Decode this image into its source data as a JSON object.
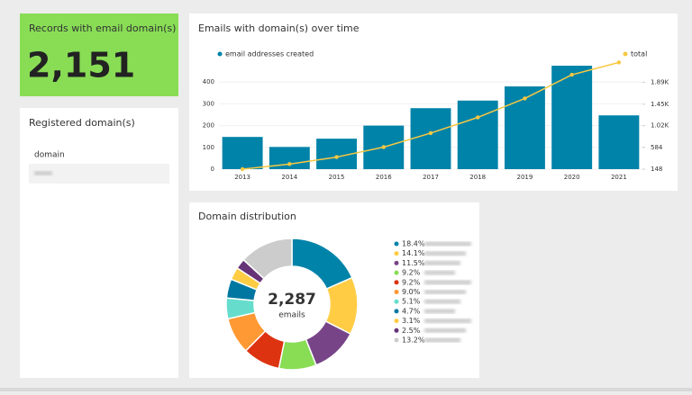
{
  "kpi": {
    "title": "Records with email domain(s)",
    "value": "2,151"
  },
  "registered_domains": {
    "title": "Registered domain(s)",
    "column": "domain"
  },
  "chart_data": [
    {
      "type": "bar",
      "title": "Emails with domain(s) over time",
      "categories": [
        "2013",
        "2014",
        "2015",
        "2016",
        "2017",
        "2018",
        "2019",
        "2020",
        "2021"
      ],
      "series": [
        {
          "name": "email addresses created",
          "color": "#0083a9",
          "values": [
            148,
            102,
            140,
            200,
            280,
            315,
            380,
            475,
            247
          ]
        },
        {
          "name": "total",
          "color": "#f7c843",
          "type": "line",
          "axis": "y2",
          "values": [
            148,
            250,
            390,
            590,
            870,
            1185,
            1565,
            2040,
            2287
          ]
        }
      ],
      "ylim": [
        0,
        500
      ],
      "yticks": [
        0,
        100,
        200,
        300,
        400
      ],
      "y2lim": [
        148,
        2330
      ],
      "y2ticks": [
        148,
        584,
        {
          "value": 1020,
          "label": "1.02K"
        },
        {
          "value": 1450,
          "label": "1.45K"
        },
        {
          "value": 1890,
          "label": "1.89K"
        }
      ],
      "grid": true,
      "legend": "top"
    },
    {
      "type": "donut",
      "title": "Domain distribution",
      "center_label": "2,287",
      "center_sublabel": "emails",
      "categories": [
        null,
        null,
        null,
        null,
        null,
        null,
        null,
        null,
        null,
        null,
        null
      ],
      "values": [
        18.4,
        14.1,
        11.5,
        9.2,
        9.2,
        9.0,
        5.1,
        4.7,
        3.1,
        2.5,
        13.2
      ],
      "value_labels": [
        "18.4%",
        "14.1%",
        "11.5%",
        "9.2%",
        "9.2%",
        "9.0%",
        "5.1%",
        "4.7%",
        "3.1%",
        "2.5%",
        "13.2%"
      ],
      "colors": [
        "#0083a9",
        "#ffcc44",
        "#774488",
        "#88dd55",
        "#dd3311",
        "#ff9933",
        "#66ddcc",
        "#0077a0",
        "#ffcc44",
        "#663377",
        "#cccccc"
      ],
      "legend": "right"
    }
  ]
}
